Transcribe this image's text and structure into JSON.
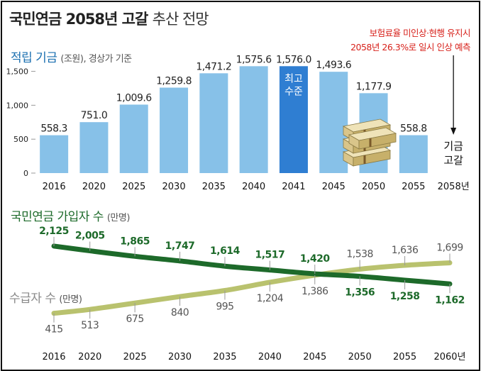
{
  "title": {
    "main": "국민연금 2058년 고갈",
    "sub": "추산 전망"
  },
  "note": {
    "line1": "보험료율 미인상·현행 유지시",
    "line2": "2058년 26.3%로 일시 인상 예측"
  },
  "chart_data": [
    {
      "type": "bar",
      "title": "적립 기금",
      "unit": "(조원), 경상가 기준",
      "categories": [
        "2016",
        "2020",
        "2025",
        "2030",
        "2035",
        "2040",
        "2041",
        "2045",
        "2050",
        "2055",
        "2058년"
      ],
      "values": [
        558.3,
        751.0,
        1009.6,
        1259.8,
        1471.2,
        1575.6,
        1576.0,
        1493.6,
        1177.9,
        558.8,
        0
      ],
      "value_labels": [
        "558.3",
        "751.0",
        "1,009.6",
        "1,259.8",
        "1,471.2",
        "1,575.6",
        "1,576.0",
        "1,493.6",
        "1,177.9",
        "558.8",
        ""
      ],
      "highlight_index": 6,
      "highlight_label": [
        "최고",
        "수준"
      ],
      "depletion_label": [
        "기금",
        "고갈"
      ],
      "yticks": [
        0,
        500,
        1000,
        1500
      ],
      "ytick_labels": [
        "0",
        "500",
        "1,000",
        "1,500"
      ],
      "ylim": [
        0,
        1600
      ],
      "colors": {
        "bar": "#87c1e8",
        "highlight": "#2f7ed2",
        "axis_text": "#222",
        "value_text": "#222"
      }
    },
    {
      "type": "line",
      "x": [
        "2016",
        "2020",
        "2025",
        "2030",
        "2035",
        "2040",
        "2045",
        "2050",
        "2055",
        "2060년"
      ],
      "x_values": [
        2016,
        2020,
        2025,
        2030,
        2035,
        2040,
        2045,
        2050,
        2055,
        2060
      ],
      "xlim": [
        2016,
        2060
      ],
      "ylim": [
        300,
        2250
      ],
      "series": [
        {
          "name": "국민연금 가입자 수",
          "unit": "(만명)",
          "color": "#1d6a2a",
          "values": [
            2125,
            2005,
            1865,
            1747,
            1614,
            1517,
            1420,
            1356,
            1258,
            1162
          ],
          "labels": [
            "2,125",
            "2,005",
            "1,865",
            "1,747",
            "1,614",
            "1,517",
            "1,420",
            "1,356",
            "1,258",
            "1,162"
          ]
        },
        {
          "name": "수급자 수",
          "unit": "(만명)",
          "color": "#b9c26e",
          "values": [
            415,
            513,
            675,
            840,
            995,
            1204,
            1386,
            1538,
            1636,
            1699
          ],
          "labels": [
            "415",
            "513",
            "675",
            "840",
            "995",
            "1,204",
            "1,386",
            "1,538",
            "1,636",
            "1,699"
          ]
        }
      ]
    }
  ]
}
